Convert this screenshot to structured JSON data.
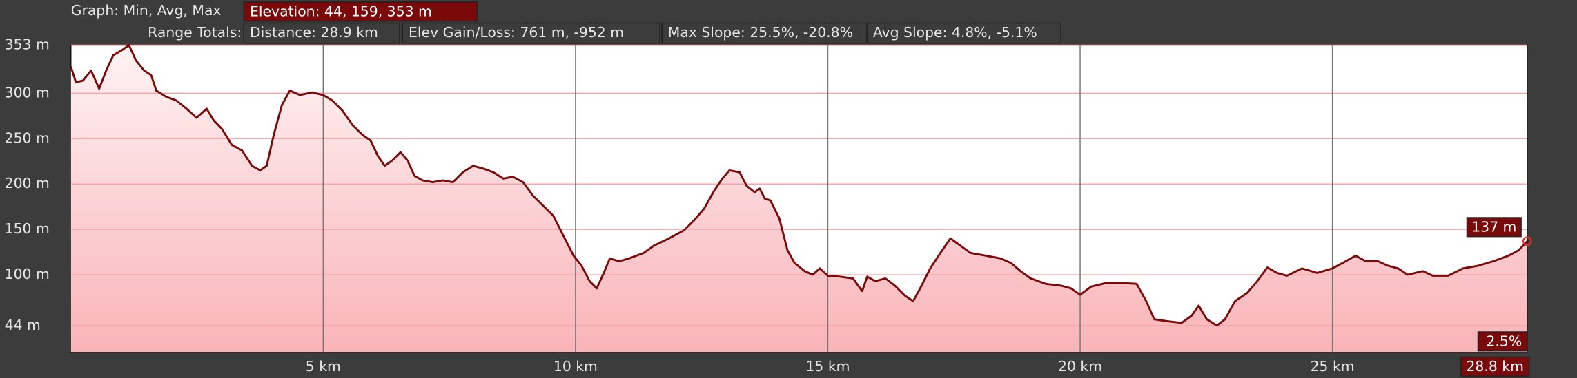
{
  "header": {
    "graph_label": "Graph: Min, Avg, Max",
    "elevation": "Elevation: 44, 159, 353 m",
    "range_label": "Range Totals:",
    "distance": "Distance: 28.9 km",
    "gain_loss": "Elev Gain/Loss: 761 m, -952 m",
    "max_slope": "Max Slope: 25.5%, -20.8%",
    "avg_slope": "Avg Slope: 4.8%, -5.1%"
  },
  "cursor": {
    "elevation": "137 m",
    "slope": "2.5%",
    "distance": "28.8 km"
  },
  "chart_data": {
    "type": "area",
    "color": "#7a0a0a",
    "fill": "#f9b4b8",
    "grid": true,
    "x": [
      0,
      0.1,
      0.24,
      0.4,
      0.56,
      0.7,
      0.84,
      1.0,
      1.15,
      1.29,
      1.45,
      1.59,
      1.69,
      1.89,
      2.09,
      2.29,
      2.49,
      2.69,
      2.83,
      2.99,
      3.19,
      3.39,
      3.59,
      3.75,
      3.88,
      4.02,
      4.18,
      4.34,
      4.54,
      4.78,
      5.0,
      5.18,
      5.38,
      5.58,
      5.78,
      5.94,
      6.08,
      6.22,
      6.37,
      6.53,
      6.67,
      6.81,
      6.97,
      7.17,
      7.37,
      7.57,
      7.77,
      7.97,
      8.17,
      8.37,
      8.57,
      8.76,
      8.96,
      9.16,
      9.36,
      9.56,
      9.76,
      9.96,
      10.12,
      10.28,
      10.42,
      10.56,
      10.68,
      10.86,
      11.06,
      11.35,
      11.55,
      11.85,
      12.15,
      12.35,
      12.55,
      12.75,
      12.91,
      13.05,
      13.25,
      13.39,
      13.55,
      13.65,
      13.75,
      13.86,
      14.04,
      14.2,
      14.34,
      14.54,
      14.7,
      14.84,
      15.0,
      15.24,
      15.5,
      15.68,
      15.78,
      15.94,
      16.14,
      16.33,
      16.53,
      16.69,
      16.83,
      17.03,
      17.23,
      17.43,
      17.63,
      17.83,
      18.13,
      18.43,
      18.63,
      18.82,
      19.02,
      19.32,
      19.62,
      19.82,
      20.0,
      20.22,
      20.52,
      20.82,
      21.12,
      21.31,
      21.47,
      21.71,
      22.01,
      22.21,
      22.35,
      22.51,
      22.71,
      22.87,
      23.07,
      23.31,
      23.51,
      23.71,
      23.9,
      24.1,
      24.4,
      24.7,
      25.0,
      25.2,
      25.46,
      25.66,
      25.9,
      26.1,
      26.3,
      26.49,
      26.79,
      26.99,
      27.29,
      27.59,
      27.89,
      28.19,
      28.49,
      28.69,
      28.86
    ],
    "values": [
      329,
      312,
      314,
      325,
      305,
      325,
      342,
      347,
      353,
      336,
      325,
      320,
      303,
      296,
      292,
      283,
      273,
      283,
      270,
      261,
      243,
      237,
      220,
      215,
      220,
      254,
      287,
      303,
      298,
      301,
      298,
      292,
      281,
      265,
      254,
      248,
      231,
      220,
      226,
      235,
      226,
      209,
      204,
      202,
      204,
      202,
      213,
      220,
      217,
      213,
      206,
      208,
      202,
      187,
      176,
      165,
      143,
      121,
      110,
      93,
      85,
      102,
      118,
      115,
      118,
      124,
      132,
      140,
      149,
      160,
      173,
      193,
      206,
      215,
      213,
      198,
      191,
      195,
      184,
      182,
      162,
      127,
      113,
      104,
      100,
      107,
      99,
      98,
      96,
      82,
      98,
      93,
      96,
      88,
      77,
      71,
      85,
      107,
      124,
      140,
      132,
      124,
      121,
      118,
      113,
      104,
      96,
      90,
      88,
      85,
      78,
      87,
      91,
      91,
      90,
      71,
      51,
      49,
      47,
      55,
      66,
      51,
      44,
      51,
      71,
      80,
      93,
      108,
      102,
      99,
      107,
      102,
      107,
      113,
      121,
      115,
      115,
      110,
      107,
      100,
      104,
      99,
      99,
      107,
      110,
      115,
      121,
      127,
      137
    ],
    "xlim": [
      0,
      28.86
    ],
    "ylim": [
      15,
      353
    ],
    "xticks": [
      {
        "value": 5,
        "label": "5 km"
      },
      {
        "value": 10,
        "label": "10 km"
      },
      {
        "value": 15,
        "label": "15 km"
      },
      {
        "value": 20,
        "label": "20 km"
      },
      {
        "value": 25,
        "label": "25 km"
      }
    ],
    "yticks": [
      {
        "value": 44,
        "label": "44 m"
      },
      {
        "value": 100,
        "label": "100 m"
      },
      {
        "value": 150,
        "label": "150 m"
      },
      {
        "value": 200,
        "label": "200 m"
      },
      {
        "value": 250,
        "label": "250 m"
      },
      {
        "value": 300,
        "label": "300 m"
      },
      {
        "value": 353,
        "label": "353 m"
      }
    ]
  }
}
